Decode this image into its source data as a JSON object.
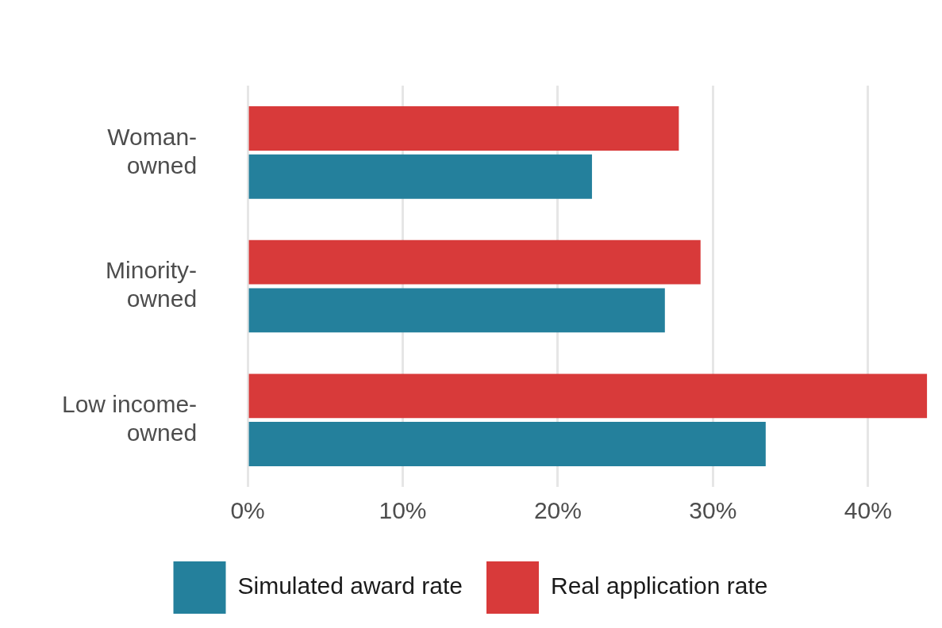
{
  "chart_data": {
    "type": "bar",
    "orientation": "horizontal",
    "categories": [
      "Woman-owned",
      "Minority-owned",
      "Low income-owned"
    ],
    "series": [
      {
        "name": "Simulated award rate",
        "color": "#24809c",
        "values": [
          22.2,
          26.9,
          33.4
        ]
      },
      {
        "name": "Real application rate",
        "color": "#d83a3a",
        "values": [
          27.8,
          29.2,
          43.8
        ]
      }
    ],
    "xlim": [
      0,
      44
    ],
    "xticks": [
      {
        "value": 0,
        "label": "0%"
      },
      {
        "value": 10,
        "label": "10%"
      },
      {
        "value": 20,
        "label": "20%"
      },
      {
        "value": 30,
        "label": "30%"
      },
      {
        "value": 40,
        "label": "40%"
      }
    ],
    "grid": "x",
    "legend": "bottom"
  }
}
